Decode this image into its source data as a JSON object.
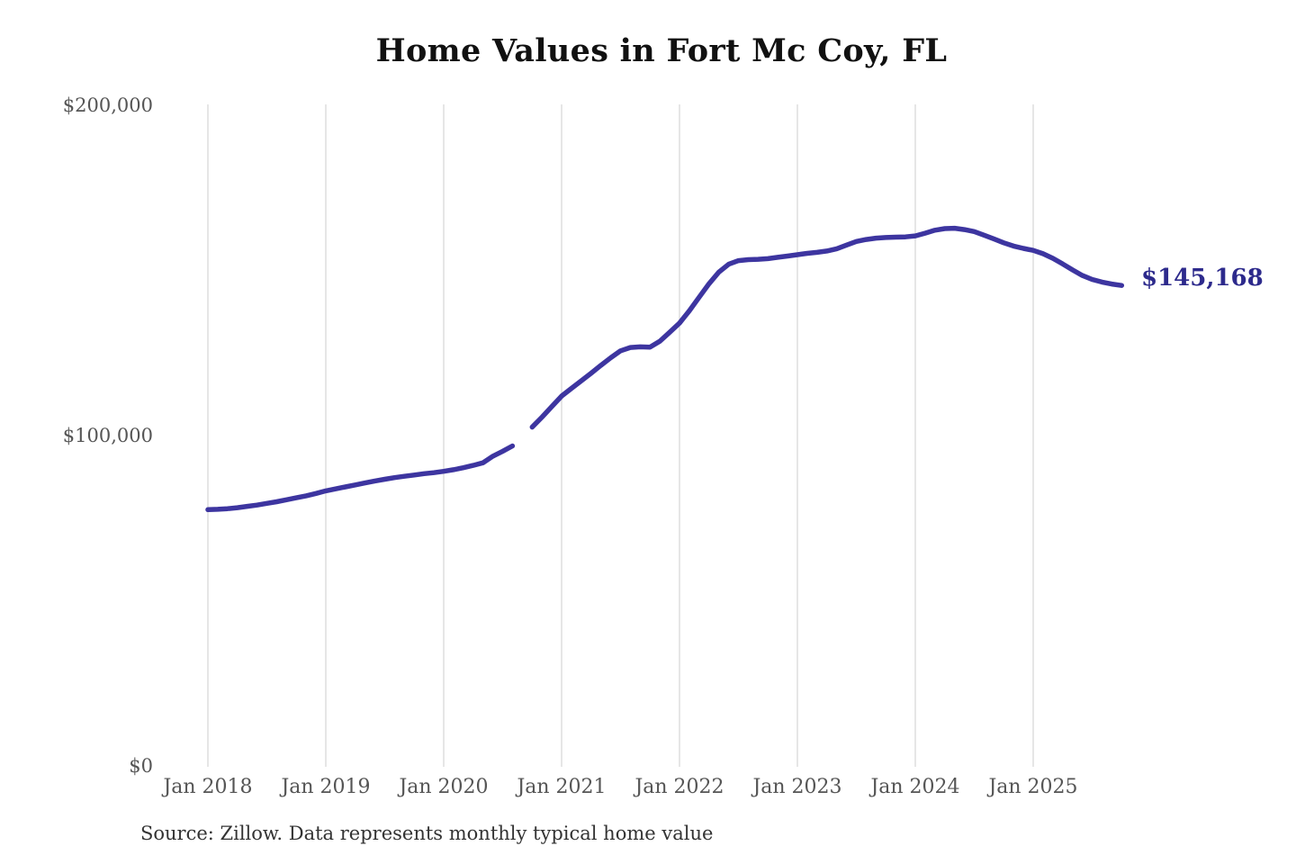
{
  "title": "Home Values in Fort Mc Coy, FL",
  "source_note": "Source: Zillow. Data represents monthly typical home value",
  "end_label": "$145,168",
  "colors": {
    "line": "#3d35a0",
    "end_label": "#2d2a8c",
    "gridline": "#cccccc",
    "axis_label": "#555555",
    "title": "#111111",
    "source": "#333333",
    "background": "#ffffff"
  },
  "chart_data": {
    "type": "line",
    "title": "Home Values in Fort Mc Coy, FL",
    "x_tick_labels": [
      "Jan 2018",
      "Jan 2019",
      "Jan 2020",
      "Jan 2021",
      "Jan 2022",
      "Jan 2023",
      "Jan 2024",
      "Jan 2025"
    ],
    "y_ticks": [
      {
        "value": 0,
        "label": "$0"
      },
      {
        "value": 100000,
        "label": "$100,000"
      },
      {
        "value": 200000,
        "label": "$200,000"
      }
    ],
    "ylim": [
      0,
      200000
    ],
    "grid": "vertical",
    "legend": "none",
    "frequency": "monthly",
    "start_month": "2018-01",
    "end_month": "2025-10",
    "latest_value": 145168,
    "data_gap_months": [
      "2020-09"
    ],
    "series": [
      {
        "name": "Typical home value",
        "values": [
          77300,
          77400,
          77600,
          77900,
          78300,
          78700,
          79200,
          79700,
          80300,
          80900,
          81500,
          82200,
          83000,
          83600,
          84200,
          84800,
          85400,
          86000,
          86500,
          87000,
          87400,
          87800,
          88200,
          88500,
          88900,
          89400,
          90000,
          90700,
          91500,
          93500,
          95000,
          96600,
          null,
          102300,
          105300,
          108500,
          111700,
          114000,
          116300,
          118600,
          121000,
          123300,
          125400,
          126400,
          126600,
          126500,
          128300,
          131000,
          133800,
          137500,
          141600,
          145700,
          149200,
          151600,
          152700,
          153000,
          153100,
          153300,
          153700,
          154100,
          154500,
          154900,
          155200,
          155600,
          156300,
          157400,
          158500,
          159100,
          159500,
          159700,
          159800,
          159900,
          160200,
          161000,
          161900,
          162400,
          162500,
          162100,
          161500,
          160400,
          159300,
          158100,
          157100,
          156400,
          155800,
          154800,
          153400,
          151700,
          149900,
          148200,
          147000,
          146200,
          145600,
          145168
        ]
      }
    ]
  }
}
